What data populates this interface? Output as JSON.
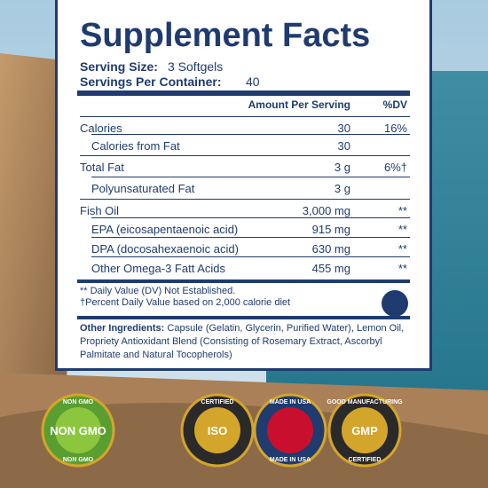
{
  "header": {
    "title": "Supplement Facts",
    "serving_size_label": "Serving Size:",
    "serving_size": "3 Softgels",
    "servings_label": "Servings Per Container:",
    "servings": "40"
  },
  "table": {
    "columns": [
      "Amount Per Serving",
      "%DV"
    ],
    "rows": [
      {
        "name": "Calories",
        "amount": "30",
        "dv": "16%"
      },
      {
        "name": "Calories from Fat",
        "amount": "30"
      },
      {
        "name": "Total Fat",
        "amount": "3 g",
        "dv": "6%†"
      },
      {
        "name": "Polyunsaturated Fat",
        "amount": "3 g"
      },
      {
        "name": "Fish Oil",
        "amount": "3,000 mg",
        "dv": "**"
      },
      {
        "name": "EPA (eicosapentaenoic acid)",
        "amount": "915 mg",
        "dv": "**"
      },
      {
        "name": "DPA (docosahexaenoic acid)",
        "amount": "630 mg",
        "dv": "**"
      },
      {
        "name": "Other Omega-3 Fatt Acids",
        "amount": "455 mg",
        "dv": "**"
      }
    ]
  },
  "footnotes": [
    "** Daily Value (DV) Not Established.",
    "†Percent Daily Value based on 2,000 calorie diet"
  ],
  "ingredients": {
    "label": "Other Ingredients:",
    "text": "Capsule (Gelatin, Glycerin, Purified Water), Lemon Oil, Propriety Antioxidant Blend (Consisting of Rosemary Extract, Ascorbyl Palmitate and Natural Tocopherols)"
  },
  "badges": [
    {
      "top": "NON GMO",
      "center": "NON GMO",
      "bottom": "NON GMO"
    },
    {
      "top": "CERTIFIED",
      "center": "ISO"
    },
    {
      "top": "MADE IN USA",
      "bottom": "MADE IN USA"
    },
    {
      "top": "GOOD MANUFACTURING",
      "center": "GMP",
      "bottom": "CERTIFIED"
    }
  ]
}
